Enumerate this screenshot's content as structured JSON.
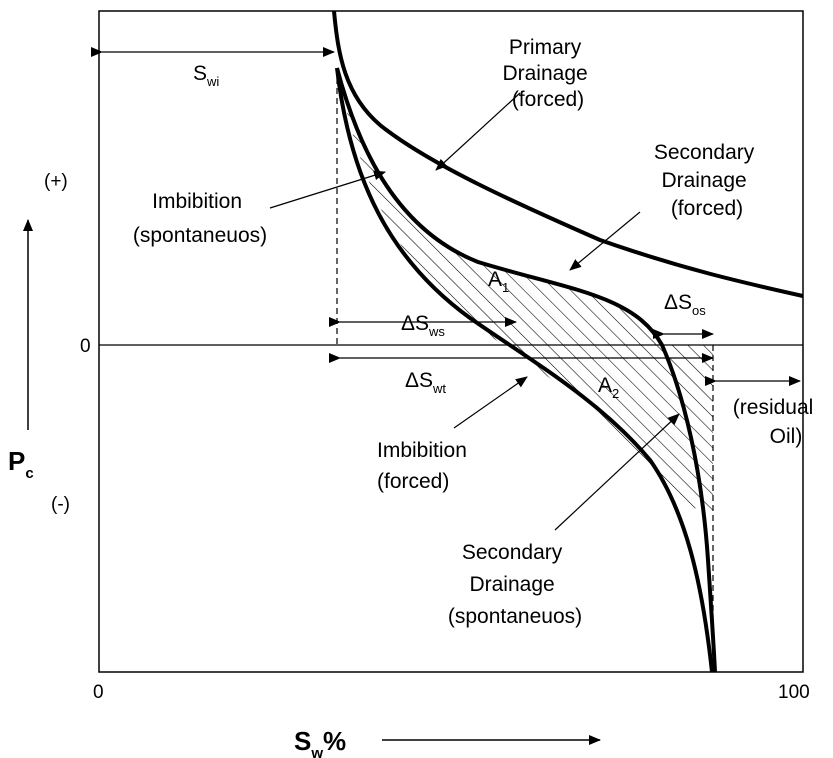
{
  "axes": {
    "x_min_label": "0",
    "x_max_label": "100",
    "x_title_main": "S",
    "x_title_sub": "w",
    "x_title_suffix": "%",
    "y_title_main": "P",
    "y_title_sub": "c",
    "y_zero_label": "0",
    "y_positive_label": "(+)",
    "y_negative_label": "(-)"
  },
  "curves": {
    "primary_drainage": [
      "Primary",
      "Drainage",
      "(forced)"
    ],
    "secondary_drainage_forced": [
      "Secondary",
      "Drainage",
      "(forced)"
    ],
    "imbibition_spontaneous": [
      "Imbibition",
      "(spontaneuos)"
    ],
    "imbibition_forced": [
      "Imbibition",
      "(forced)"
    ],
    "secondary_drainage_spontaneous": [
      "Secondary",
      "Drainage",
      "(spontaneuos)"
    ]
  },
  "areas": {
    "a1_main": "A",
    "a1_sub": "1",
    "a2_main": "A",
    "a2_sub": "2"
  },
  "spans": {
    "swi_main": "S",
    "swi_sub": "wi",
    "dsws_main": "ΔS",
    "dsws_sub": "ws",
    "dswt_main": "ΔS",
    "dswt_sub": "wt",
    "dsos_main": "ΔS",
    "dsos_sub": "os",
    "residual_oil": [
      "(residual",
      "Oil)"
    ]
  },
  "colors": {
    "ink": "#000000",
    "background": "#ffffff"
  }
}
